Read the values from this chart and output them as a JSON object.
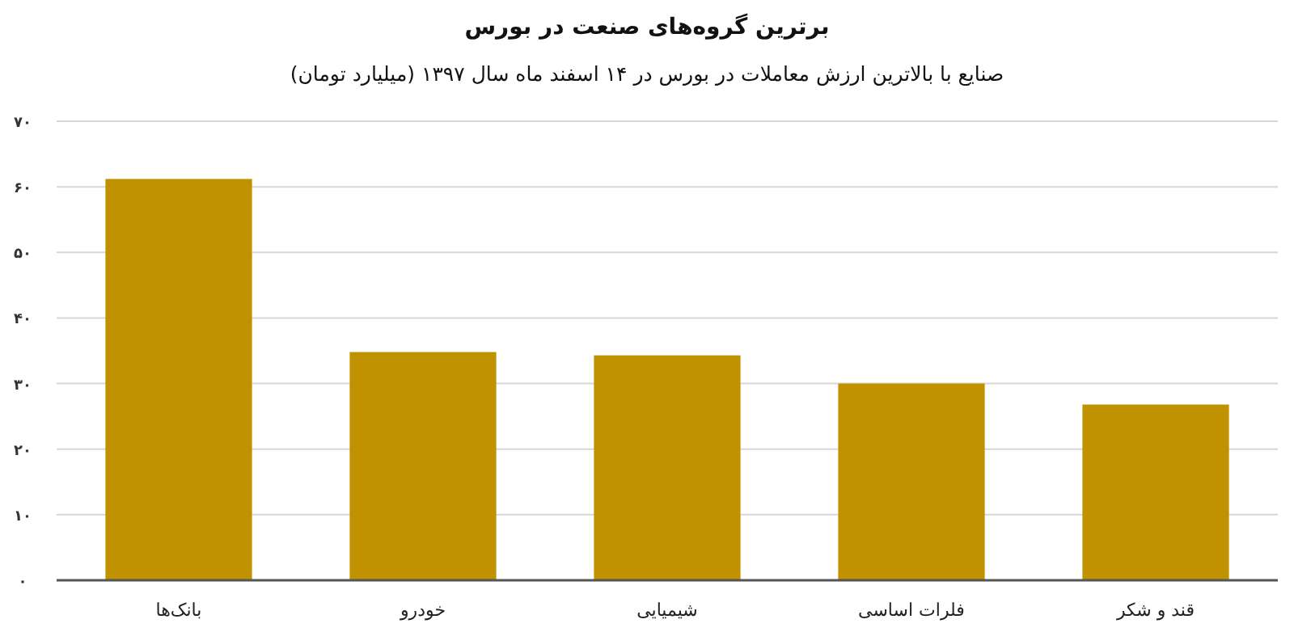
{
  "chart_data": {
    "type": "bar",
    "title": "برترین گروه‌های صنعت در بورس",
    "subtitle": "صنایع با بالاترین ارزش معاملات در بورس در ۱۴ اسفند ماه سال ۱۳۹۷ (میلیارد تومان)",
    "categories": [
      "بانک‌ها",
      "خودرو",
      "شیمیایی",
      "فلرات اساسی",
      "قند و شکر"
    ],
    "values": [
      61.2,
      34.8,
      34.3,
      30.0,
      26.8
    ],
    "color": "#c19200",
    "ylim": [
      0,
      70
    ],
    "yticks": [
      {
        "value": 0,
        "label": "۰"
      },
      {
        "value": 10,
        "label": "۱۰"
      },
      {
        "value": 20,
        "label": "۲۰"
      },
      {
        "value": 30,
        "label": "۳۰"
      },
      {
        "value": 40,
        "label": "۴۰"
      },
      {
        "value": 50,
        "label": "۵۰"
      },
      {
        "value": 60,
        "label": "۶۰"
      },
      {
        "value": 70,
        "label": "۷۰"
      }
    ],
    "grid": "y"
  }
}
